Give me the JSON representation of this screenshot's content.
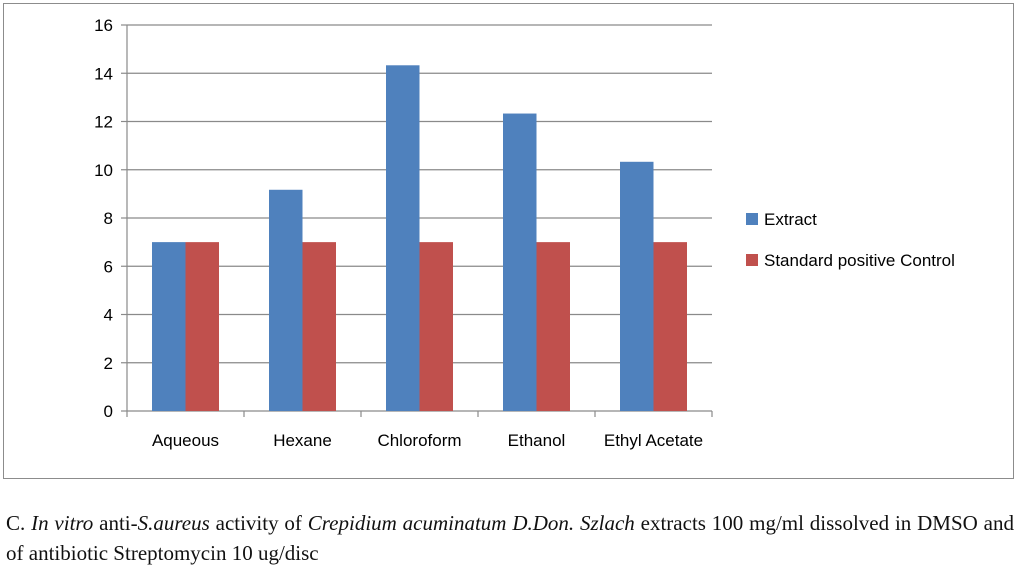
{
  "chart_data": {
    "type": "bar",
    "categories": [
      "Aqueous",
      "Hexane",
      "Chloroform",
      "Ethanol",
      "Ethyl Acetate"
    ],
    "series": [
      {
        "name": "Extract",
        "values": [
          7,
          9.17,
          14.33,
          12.33,
          10.33
        ],
        "color": "#4f81bd"
      },
      {
        "name": "Standard positive Control",
        "values": [
          7,
          7,
          7,
          7,
          7
        ],
        "color": "#c0504d"
      }
    ],
    "title": "",
    "xlabel": "",
    "ylabel": "",
    "ylim": [
      0,
      16
    ],
    "yticks": [
      0,
      2,
      4,
      6,
      8,
      10,
      12,
      14,
      16
    ],
    "grid": true,
    "legend_position": "right"
  },
  "caption": {
    "prefix": "C. ",
    "in_vitro": "In vitro",
    "anti": " anti-",
    "organism": "S.aureus",
    "activity_of": " activity of ",
    "species": "Crepidium acuminatum D.Don. Szlach",
    "rest": " extracts 100 mg/ml dissolved in DMSO and of antibiotic Streptomycin 10 ug/disc"
  }
}
